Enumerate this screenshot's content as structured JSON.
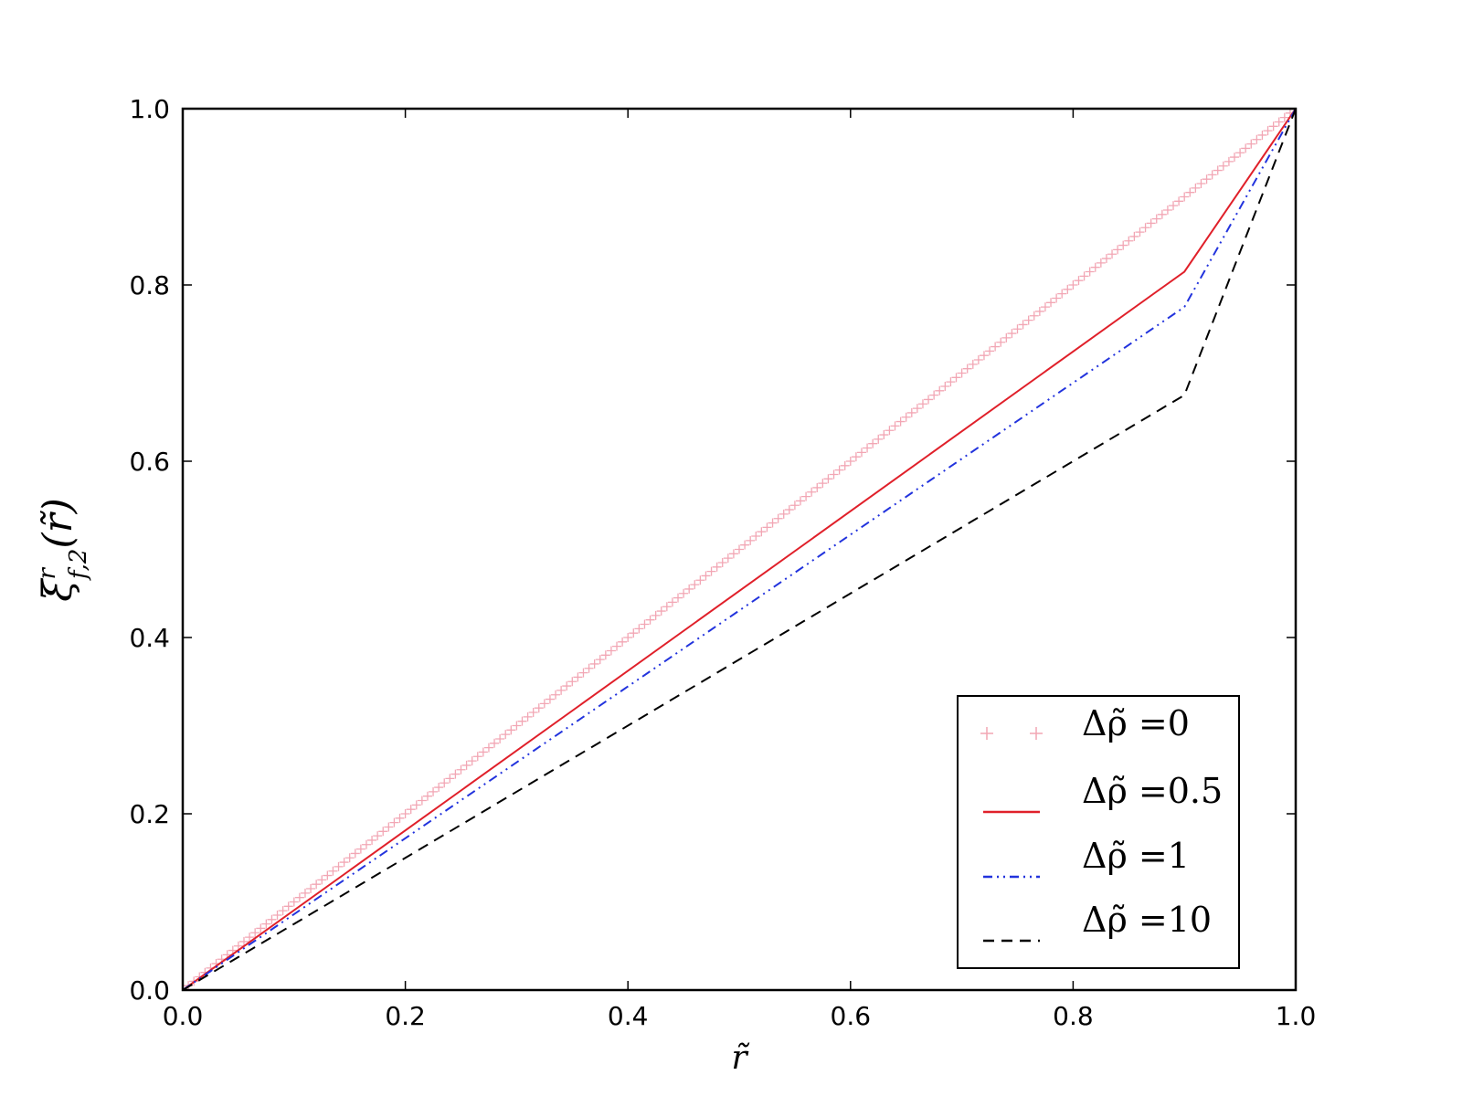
{
  "chart_data": {
    "type": "line",
    "xlabel": "r̃",
    "ylabel": "ξ̃ f,2 (r̃)",
    "ylabel_parts": {
      "base": "ξ",
      "super": "r",
      "sub": "f,2",
      "arg": "(r̃)"
    },
    "xlim": [
      0.0,
      1.0
    ],
    "ylim": [
      0.0,
      1.0
    ],
    "xticks": [
      "0.0",
      "0.2",
      "0.4",
      "0.6",
      "0.8",
      "1.0"
    ],
    "yticks": [
      "0.0",
      "0.2",
      "0.4",
      "0.6",
      "0.8",
      "1.0"
    ],
    "grid": false,
    "legend_position": "lower-right",
    "series": [
      {
        "name": "Δρ̃ =0",
        "style": "plus-markers",
        "color": "#f2a6b4",
        "x": [
          0.0,
          1.0
        ],
        "y": [
          0.0,
          1.0
        ]
      },
      {
        "name": "Δρ̃ =0.5",
        "style": "solid",
        "color": "#e0202a",
        "x": [
          0.0,
          0.9,
          1.0
        ],
        "y": [
          0.0,
          0.815,
          1.0
        ]
      },
      {
        "name": "Δρ̃ =1",
        "style": "dash-dot-dot",
        "color": "#2233dd",
        "x": [
          0.0,
          0.9,
          1.0
        ],
        "y": [
          0.0,
          0.775,
          1.0
        ]
      },
      {
        "name": "Δρ̃ =10",
        "style": "dashed",
        "color": "#000000",
        "x": [
          0.0,
          0.9,
          1.0
        ],
        "y": [
          0.0,
          0.675,
          1.0
        ]
      }
    ]
  }
}
